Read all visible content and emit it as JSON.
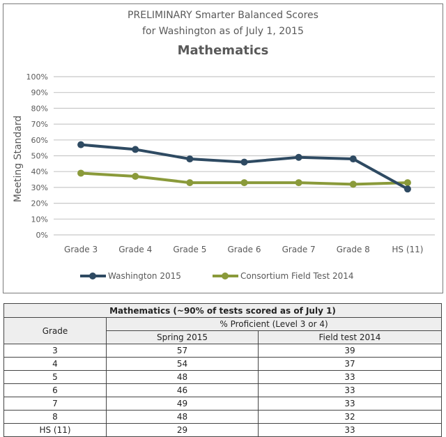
{
  "chart": {
    "title_line1": "PRELIMINARY Smarter Balanced Scores",
    "title_line2": "for Washington as of July 1, 2015",
    "subject": "Mathematics",
    "ylabel": "Meeting Standard",
    "yticks": [
      "100%",
      "90%",
      "80%",
      "70%",
      "60%",
      "50%",
      "40%",
      "30%",
      "20%",
      "10%",
      "0%"
    ],
    "xticks": [
      "Grade 3",
      "Grade 4",
      "Grade 5",
      "Grade 6",
      "Grade 7",
      "Grade 8",
      "HS (11)"
    ],
    "legend": [
      {
        "label": "Washington 2015",
        "color": "#2e4a62"
      },
      {
        "label": "Consortium Field Test 2014",
        "color": "#8a9a3a"
      }
    ]
  },
  "chart_data": {
    "type": "line",
    "title": "PRELIMINARY Smarter Balanced Scores for Washington as of July 1, 2015 — Mathematics",
    "xlabel": "",
    "ylabel": "Meeting Standard",
    "ylim": [
      0,
      100
    ],
    "y_unit": "%",
    "grid": true,
    "legend_position": "bottom",
    "categories": [
      "Grade 3",
      "Grade 4",
      "Grade 5",
      "Grade 6",
      "Grade 7",
      "Grade 8",
      "HS (11)"
    ],
    "series": [
      {
        "name": "Washington 2015",
        "color": "#2e4a62",
        "values": [
          57,
          54,
          48,
          46,
          49,
          48,
          29
        ]
      },
      {
        "name": "Consortium Field Test 2014",
        "color": "#8a9a3a",
        "values": [
          39,
          37,
          33,
          33,
          33,
          32,
          33
        ]
      }
    ]
  },
  "table": {
    "caption": "Mathematics (~90% of tests scored as of July 1)",
    "grade_header": "Grade",
    "group_header": "% Proficient (Level 3 or 4)",
    "col_headers": [
      "Spring 2015",
      "Field test 2014"
    ],
    "rows": [
      {
        "grade": "3",
        "spring_2015": "57",
        "field_2014": "39"
      },
      {
        "grade": "4",
        "spring_2015": "54",
        "field_2014": "37"
      },
      {
        "grade": "5",
        "spring_2015": "48",
        "field_2014": "33"
      },
      {
        "grade": "6",
        "spring_2015": "46",
        "field_2014": "33"
      },
      {
        "grade": "7",
        "spring_2015": "49",
        "field_2014": "33"
      },
      {
        "grade": "8",
        "spring_2015": "48",
        "field_2014": "32"
      },
      {
        "grade": "HS (11)",
        "spring_2015": "29",
        "field_2014": "33"
      }
    ]
  }
}
